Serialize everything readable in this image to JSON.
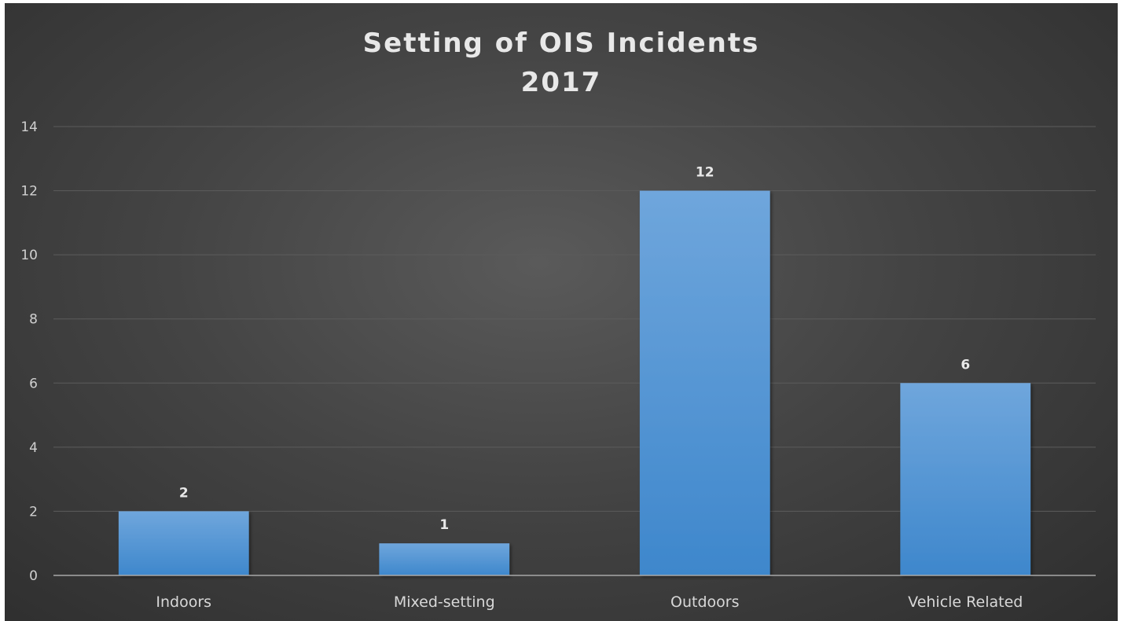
{
  "chart_data": {
    "type": "bar",
    "title": "Setting of OIS Incidents",
    "subtitle": "2017",
    "categories": [
      "Indoors",
      "Mixed-setting",
      "Outdoors",
      "Vehicle Related"
    ],
    "values": [
      2,
      1,
      12,
      6
    ],
    "xlabel": "",
    "ylabel": "",
    "ylim": [
      0,
      14
    ],
    "yticks": [
      0,
      2,
      4,
      6,
      8,
      10,
      12,
      14
    ],
    "grid": true,
    "legend": "none",
    "data_labels": true,
    "colors": {
      "bar_top": "#6fa6dc",
      "bar_bottom": "#3e87cc",
      "background_center": "#5a5a5a",
      "background_edge": "#2e2e2e"
    }
  }
}
